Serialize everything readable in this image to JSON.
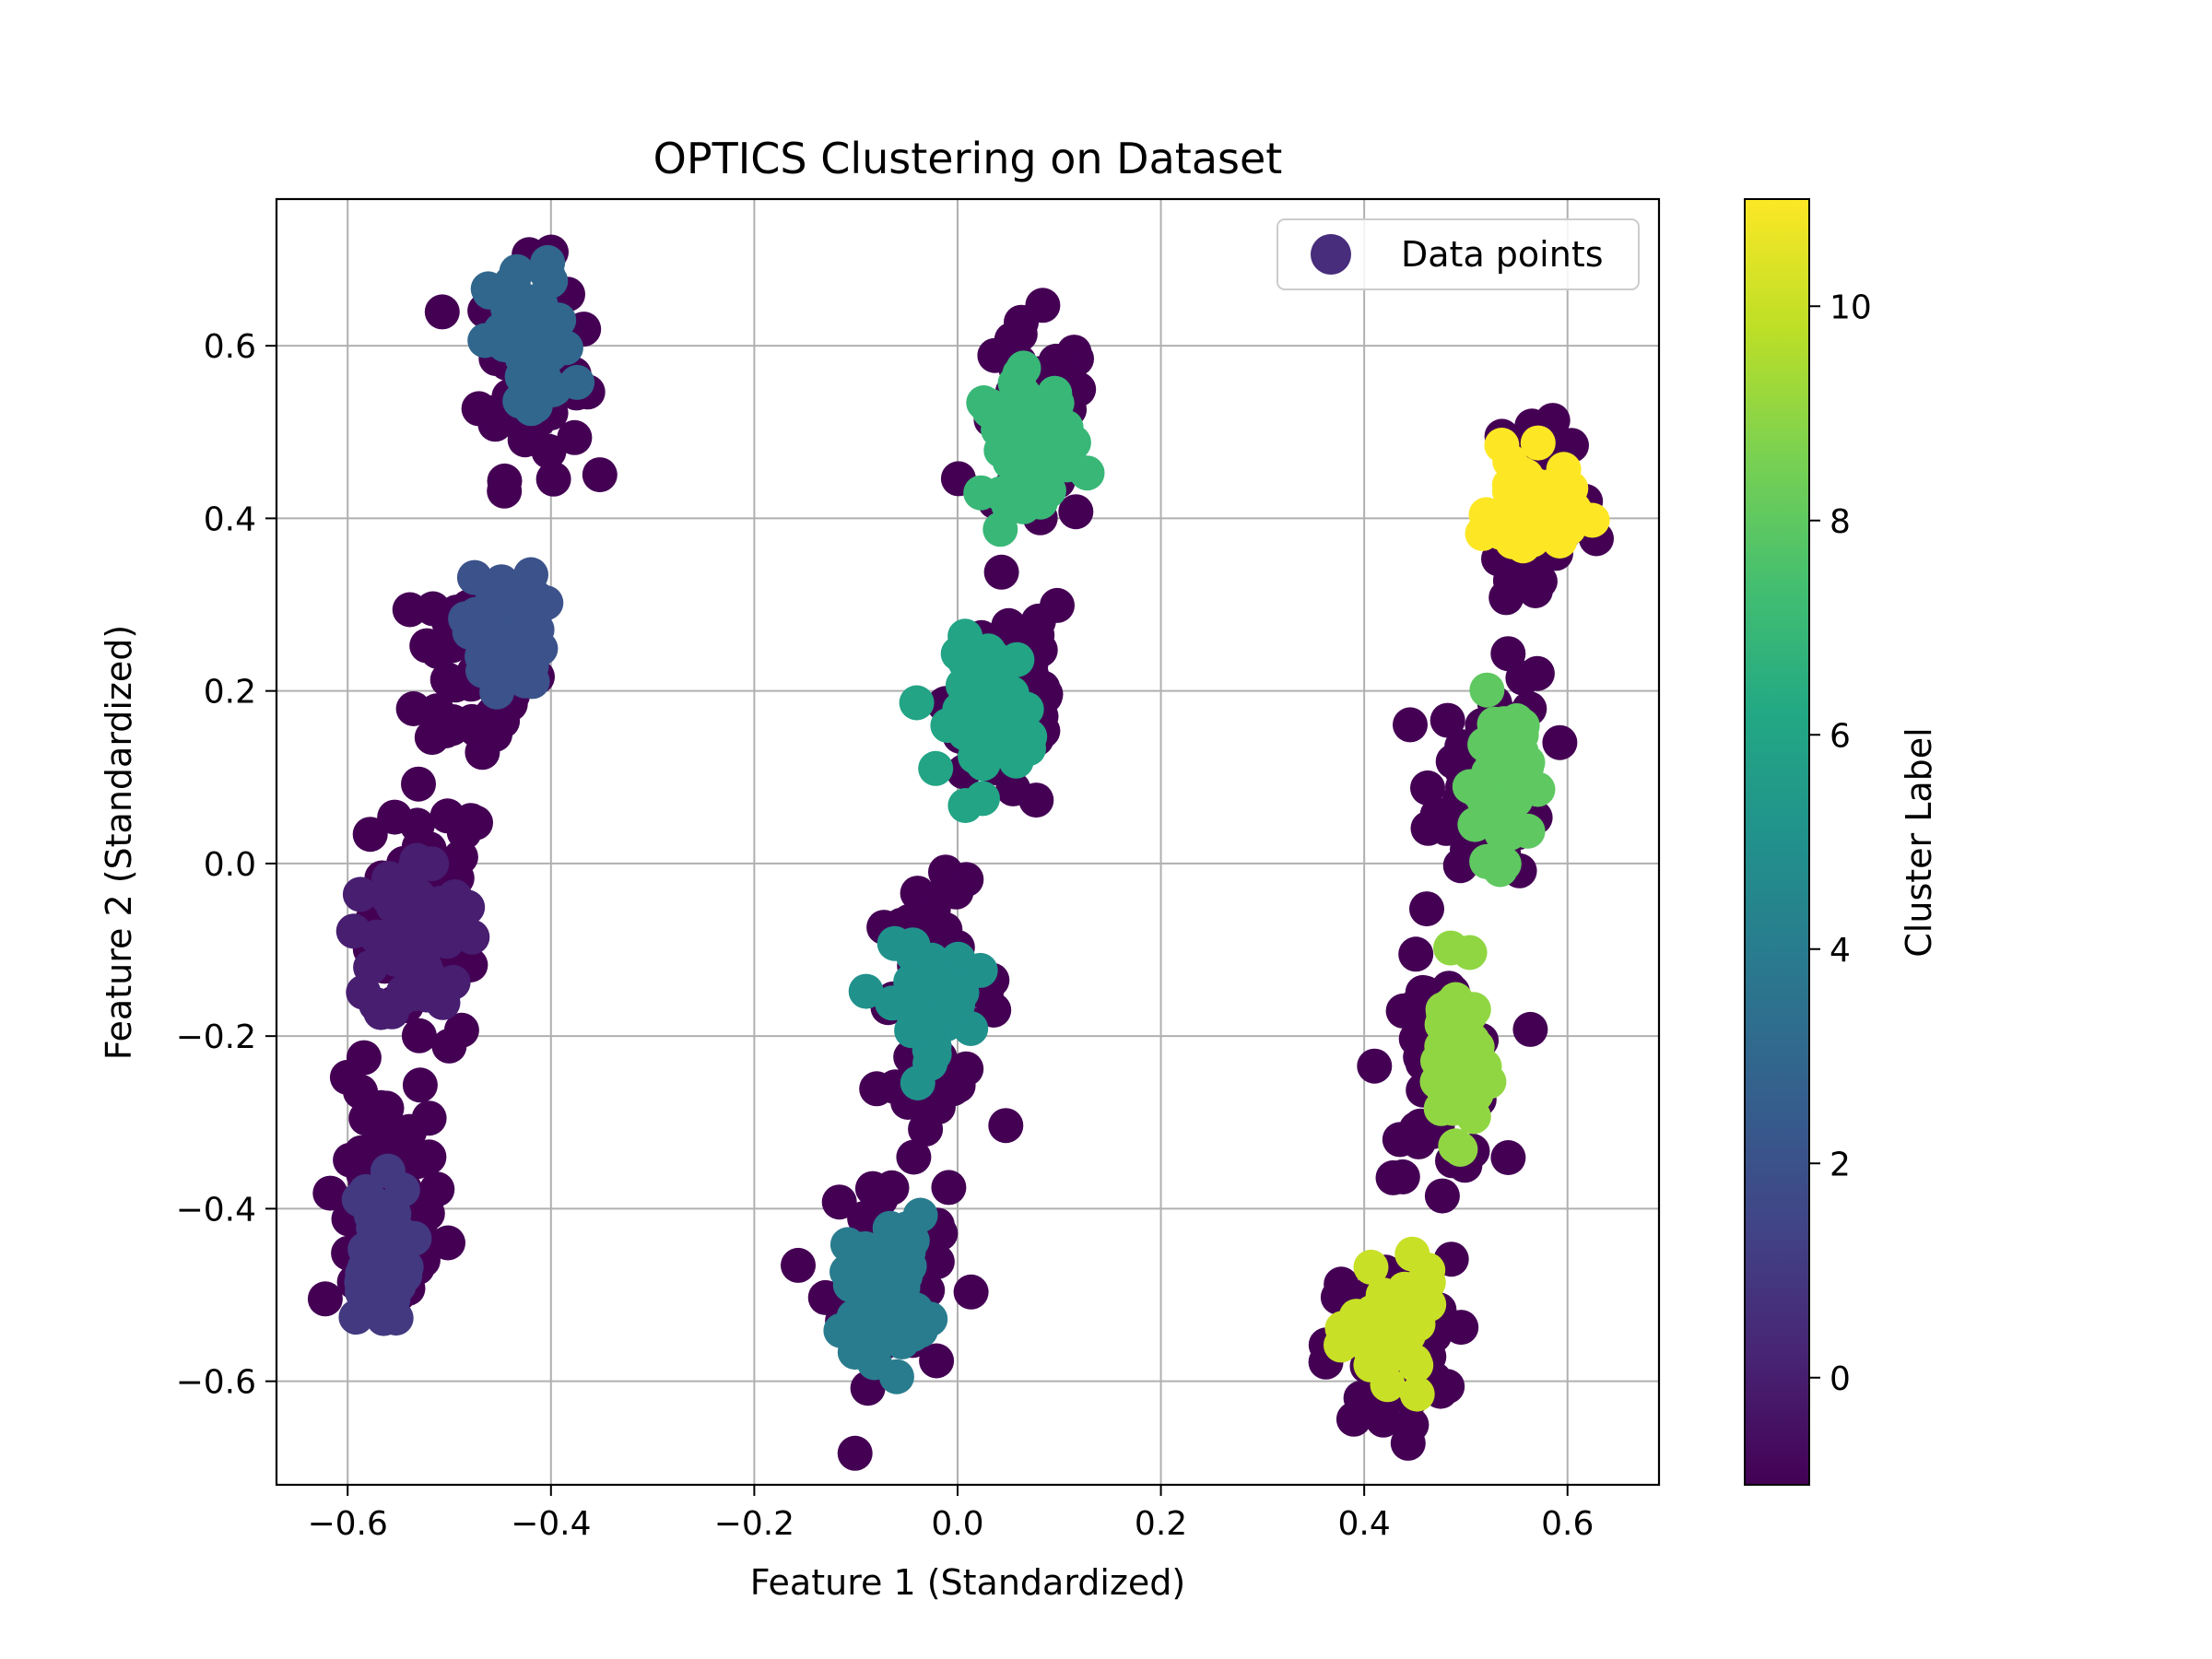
{
  "chart_data": {
    "type": "scatter",
    "title": "OPTICS Clustering on Dataset",
    "xlabel": "Feature 1 (Standardized)",
    "ylabel": "Feature 2 (Standardized)",
    "xlim": [
      -0.67,
      0.69
    ],
    "ylim": [
      -0.72,
      0.77
    ],
    "xticks": [
      -0.6,
      -0.4,
      -0.2,
      0.0,
      0.2,
      0.4,
      0.6
    ],
    "yticks": [
      -0.6,
      -0.4,
      -0.2,
      0.0,
      0.2,
      0.4,
      0.6
    ],
    "xtick_labels": [
      "−0.6",
      "−0.4",
      "−0.2",
      "0.0",
      "0.2",
      "0.4",
      "0.6"
    ],
    "ytick_labels": [
      "−0.6",
      "−0.4",
      "−0.2",
      "0.0",
      "0.2",
      "0.4",
      "0.6"
    ],
    "grid": true,
    "legend": {
      "label": "Data points",
      "position": "top-right",
      "marker_color": "#472d7b"
    },
    "colorbar": {
      "label": "Cluster Label",
      "colormap": "viridis",
      "range": [
        -1,
        11
      ],
      "ticks": [
        0,
        2,
        4,
        6,
        8,
        10
      ],
      "tick_labels": [
        "0",
        "2",
        "4",
        "6",
        "8",
        "10"
      ]
    },
    "clusters": [
      {
        "label": 0,
        "center": [
          -0.53,
          -0.09
        ],
        "core_spread": [
          0.022,
          0.05
        ],
        "noise_center": [
          -0.52,
          -0.06
        ],
        "noise_spread": [
          0.028,
          0.075
        ]
      },
      {
        "label": 1,
        "center": [
          -0.57,
          -0.45
        ],
        "core_spread": [
          0.015,
          0.04
        ],
        "noise_center": [
          -0.565,
          -0.4
        ],
        "noise_spread": [
          0.03,
          0.07
        ]
      },
      {
        "label": 2,
        "center": [
          -0.445,
          0.27
        ],
        "core_spread": [
          0.018,
          0.032
        ],
        "noise_center": [
          -0.47,
          0.23
        ],
        "noise_spread": [
          0.03,
          0.06
        ]
      },
      {
        "label": 3,
        "center": [
          -0.42,
          0.6
        ],
        "core_spread": [
          0.02,
          0.045
        ],
        "noise_center": [
          -0.42,
          0.57
        ],
        "noise_spread": [
          0.025,
          0.06
        ]
      },
      {
        "label": 4,
        "center": [
          -0.07,
          -0.49
        ],
        "core_spread": [
          0.02,
          0.04
        ],
        "noise_center": [
          -0.07,
          -0.48
        ],
        "noise_spread": [
          0.03,
          0.06
        ]
      },
      {
        "label": 5,
        "center": [
          -0.03,
          -0.16
        ],
        "core_spread": [
          0.02,
          0.03
        ],
        "noise_center": [
          -0.02,
          -0.15
        ],
        "noise_spread": [
          0.03,
          0.06
        ]
      },
      {
        "label": 6,
        "center": [
          0.035,
          0.18
        ],
        "core_spread": [
          0.02,
          0.04
        ],
        "noise_center": [
          0.05,
          0.19
        ],
        "noise_spread": [
          0.03,
          0.07
        ]
      },
      {
        "label": 7,
        "center": [
          0.07,
          0.49
        ],
        "core_spread": [
          0.022,
          0.035
        ],
        "noise_center": [
          0.075,
          0.5
        ],
        "noise_spread": [
          0.028,
          0.06
        ]
      },
      {
        "label": 8,
        "center": [
          0.535,
          0.1
        ],
        "core_spread": [
          0.013,
          0.045
        ],
        "noise_center": [
          0.525,
          0.1
        ],
        "noise_spread": [
          0.028,
          0.06
        ]
      },
      {
        "label": 9,
        "center": [
          0.49,
          -0.22
        ],
        "core_spread": [
          0.012,
          0.045
        ],
        "noise_center": [
          0.475,
          -0.24
        ],
        "noise_spread": [
          0.028,
          0.06
        ]
      },
      {
        "label": 10,
        "center": [
          0.43,
          -0.54
        ],
        "core_spread": [
          0.02,
          0.03
        ],
        "noise_center": [
          0.425,
          -0.56
        ],
        "noise_spread": [
          0.03,
          0.05
        ]
      },
      {
        "label": 11,
        "center": [
          0.565,
          0.41
        ],
        "core_spread": [
          0.02,
          0.03
        ],
        "noise_center": [
          0.575,
          0.42
        ],
        "noise_spread": [
          0.025,
          0.07
        ]
      }
    ],
    "noise_label": -1,
    "noise_color": "#440154"
  }
}
